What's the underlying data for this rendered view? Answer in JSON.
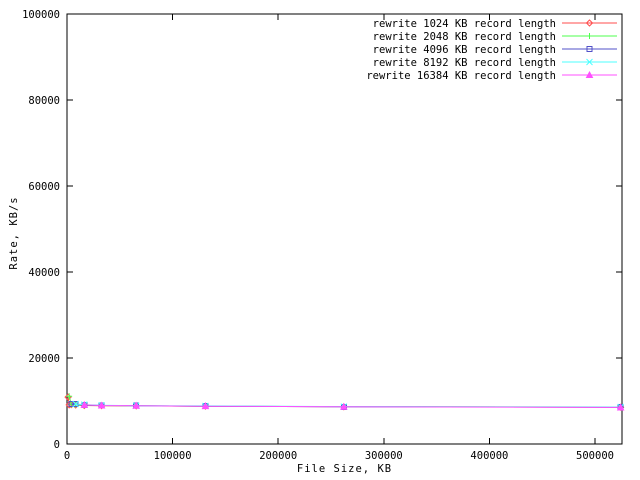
{
  "figure": {
    "background": "#ffffff",
    "border_color": "#000000",
    "text_color": "#000000"
  },
  "chart_data": {
    "type": "line",
    "title": "",
    "xlabel": "File Size, KB",
    "ylabel": "Rate, KB/s",
    "xlim": [
      0,
      525568
    ],
    "ylim": [
      0,
      100000
    ],
    "x_ticks": [
      0,
      100000,
      200000,
      300000,
      400000,
      500000
    ],
    "x_tick_labels": [
      "0",
      "100000",
      "200000",
      "300000",
      "400000",
      "500000"
    ],
    "y_ticks": [
      0,
      20000,
      40000,
      60000,
      80000,
      100000
    ],
    "y_tick_labels": [
      "0",
      "20000",
      "40000",
      "60000",
      "80000",
      "100000"
    ],
    "grid": false,
    "legend_position": "top-right-inside",
    "series": [
      {
        "name": "rewrite 1024 KB record length",
        "color": "#ff4d4d",
        "marker": "open-diamond",
        "points": [
          [
            1024,
            10900
          ],
          [
            2048,
            9100
          ],
          [
            4096,
            9150
          ],
          [
            8192,
            9050
          ],
          [
            16384,
            8950
          ],
          [
            32768,
            8900
          ],
          [
            65536,
            8850
          ],
          [
            131072,
            8800
          ],
          [
            262144,
            8650
          ],
          [
            524288,
            8550
          ]
        ]
      },
      {
        "name": "rewrite 2048 KB record length",
        "color": "#4dff4d",
        "marker": "plus",
        "points": [
          [
            2048,
            11100
          ],
          [
            4096,
            9200
          ],
          [
            8192,
            9100
          ],
          [
            16384,
            9000
          ],
          [
            32768,
            8950
          ],
          [
            65536,
            8900
          ],
          [
            131072,
            8800
          ],
          [
            262144,
            8700
          ],
          [
            524288,
            8600
          ]
        ]
      },
      {
        "name": "rewrite 4096 KB record length",
        "color": "#5050c8",
        "marker": "open-square",
        "points": [
          [
            4096,
            9300
          ],
          [
            8192,
            9250
          ],
          [
            16384,
            9050
          ],
          [
            32768,
            8950
          ],
          [
            65536,
            8900
          ],
          [
            131072,
            8800
          ],
          [
            262144,
            8650
          ],
          [
            524288,
            8550
          ]
        ]
      },
      {
        "name": "rewrite 8192 KB record length",
        "color": "#4dffff",
        "marker": "cross",
        "points": [
          [
            8192,
            9300
          ],
          [
            16384,
            9150
          ],
          [
            32768,
            9000
          ],
          [
            65536,
            8900
          ],
          [
            131072,
            8850
          ],
          [
            262144,
            8700
          ],
          [
            524288,
            8600
          ]
        ]
      },
      {
        "name": "rewrite 16384 KB record length",
        "color": "#ff50ff",
        "marker": "filled-triangle",
        "points": [
          [
            16384,
            9100
          ],
          [
            32768,
            8950
          ],
          [
            65536,
            8900
          ],
          [
            131072,
            8800
          ],
          [
            262144,
            8650
          ],
          [
            524288,
            8500
          ]
        ]
      }
    ]
  }
}
